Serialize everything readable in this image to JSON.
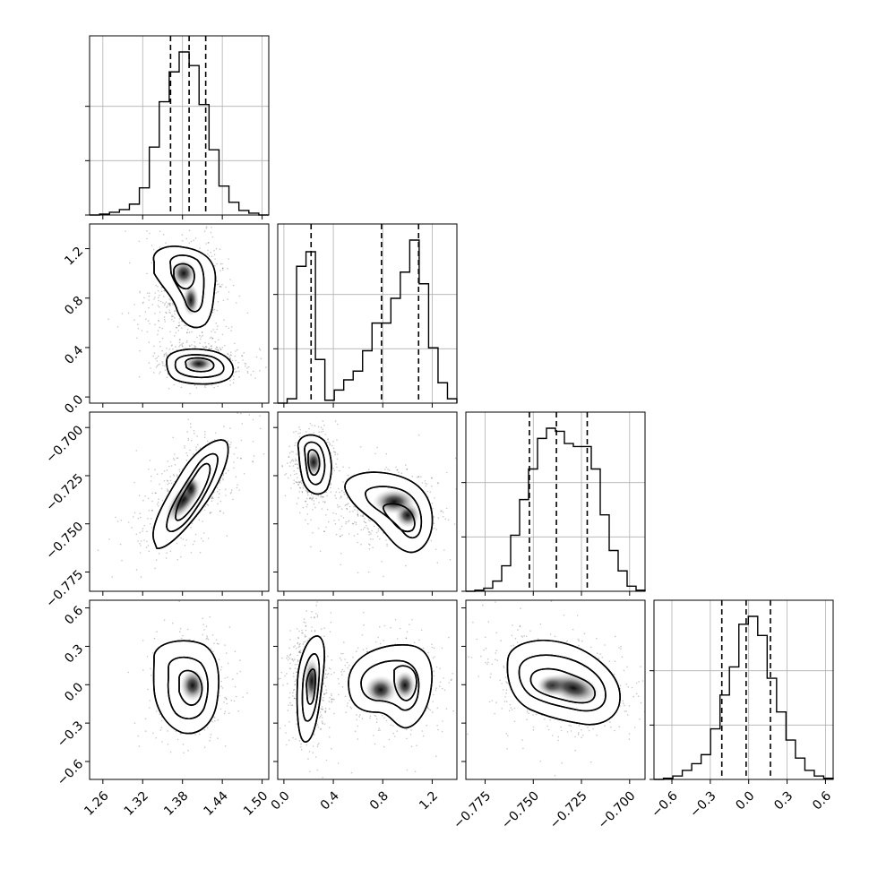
{
  "chart_data": {
    "type": "corner",
    "title": "",
    "parameters": [
      {
        "ticks": [
          1.26,
          1.32,
          1.38,
          1.44,
          1.5
        ],
        "tick_labels": [
          "1.26",
          "1.32",
          "1.38",
          "1.44",
          "1.50"
        ],
        "range": [
          1.24,
          1.51
        ]
      },
      {
        "ticks": [
          0.0,
          0.4,
          0.8,
          1.2
        ],
        "tick_labels": [
          "0.0",
          "0.4",
          "0.8",
          "1.2"
        ],
        "range": [
          -0.05,
          1.4
        ]
      },
      {
        "ticks": [
          -0.775,
          -0.75,
          -0.725,
          -0.7
        ],
        "tick_labels": [
          "−0.775",
          "−0.750",
          "−0.725",
          "−0.700"
        ],
        "range": [
          -0.785,
          -0.692
        ]
      },
      {
        "ticks": [
          -0.6,
          -0.3,
          0.0,
          0.3,
          0.6
        ],
        "tick_labels": [
          "−0.6",
          "−0.3",
          "0.0",
          "0.3",
          "0.6"
        ],
        "range": [
          -0.74,
          0.66
        ]
      }
    ],
    "histograms": [
      {
        "param": 0,
        "bin_edges_range": [
          1.24,
          1.51
        ],
        "counts": [
          0,
          1,
          3,
          6,
          12,
          30,
          75,
          125,
          158,
          180,
          165,
          122,
          72,
          32,
          14,
          5,
          2,
          0
        ],
        "quantiles": [
          1.362,
          1.39,
          1.415
        ]
      },
      {
        "param": 1,
        "bin_edges_range": [
          -0.05,
          1.4
        ],
        "counts": [
          0,
          3,
          94,
          104,
          30,
          2,
          9,
          16,
          22,
          36,
          55,
          55,
          72,
          90,
          112,
          82,
          38,
          14,
          3
        ],
        "quantiles": [
          0.22,
          0.79,
          1.09
        ]
      },
      {
        "param": 2,
        "bin_edges_range": [
          -0.785,
          -0.692
        ],
        "counts": [
          0,
          1,
          3,
          10,
          25,
          55,
          90,
          120,
          150,
          160,
          157,
          145,
          142,
          142,
          120,
          75,
          40,
          20,
          5,
          1
        ],
        "quantiles": [
          -0.752,
          -0.738,
          -0.722
        ]
      },
      {
        "param": 3,
        "bin_edges_range": [
          -0.74,
          0.66
        ],
        "counts": [
          0,
          1,
          3,
          8,
          14,
          22,
          45,
          75,
          100,
          138,
          145,
          128,
          90,
          60,
          35,
          19,
          8,
          3,
          1
        ],
        "quantiles": [
          -0.21,
          -0.02,
          0.17
        ]
      }
    ],
    "hist2d": [
      {
        "x": 0,
        "y": 1,
        "modes": [
          {
            "x": 1.385,
            "y": 0.95
          },
          {
            "x": 1.405,
            "y": 0.24
          }
        ]
      },
      {
        "x": 0,
        "y": 2,
        "modes": [
          {
            "x": 1.385,
            "y": -0.738
          }
        ]
      },
      {
        "x": 1,
        "y": 2,
        "modes": [
          {
            "x": 0.22,
            "y": -0.718
          },
          {
            "x": 1.0,
            "y": -0.745
          }
        ]
      },
      {
        "x": 0,
        "y": 3,
        "modes": [
          {
            "x": 1.39,
            "y": 0.0
          }
        ]
      },
      {
        "x": 1,
        "y": 3,
        "modes": [
          {
            "x": 0.22,
            "y": -0.05
          },
          {
            "x": 1.02,
            "y": 0.0
          }
        ]
      },
      {
        "x": 2,
        "y": 3,
        "modes": [
          {
            "x": -0.742,
            "y": 0.0
          }
        ]
      }
    ],
    "grid": true,
    "legend": "none"
  }
}
